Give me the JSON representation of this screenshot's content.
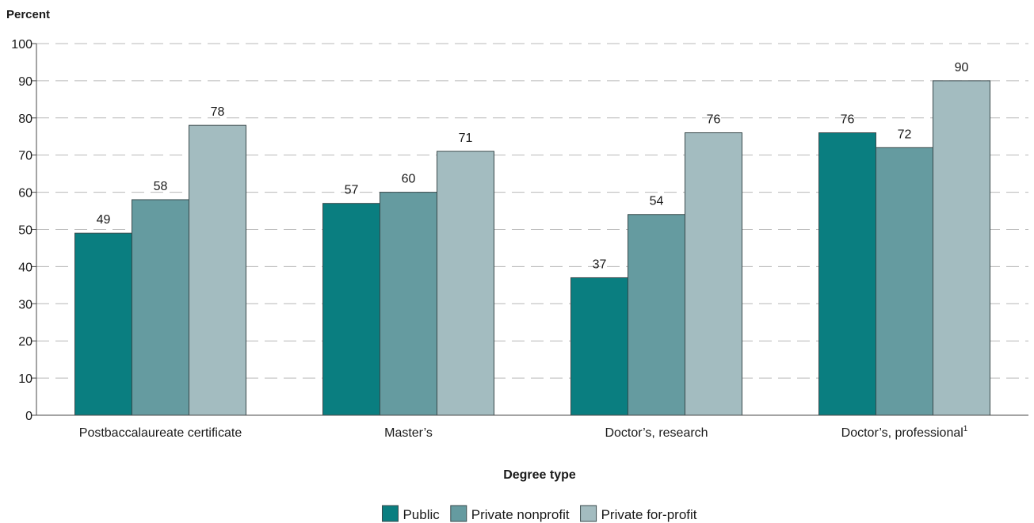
{
  "chart_data": {
    "type": "bar",
    "ylabel": "Percent",
    "xlabel": "Degree type",
    "ylim": [
      0,
      100
    ],
    "yticks": [
      0,
      10,
      20,
      30,
      40,
      50,
      60,
      70,
      80,
      90,
      100
    ],
    "grid": true,
    "legend_position": "bottom-center",
    "categories": [
      {
        "label": "Postbaccalaureate certificate",
        "footnote": ""
      },
      {
        "label": "Master’s",
        "footnote": ""
      },
      {
        "label": "Doctor’s, research",
        "footnote": ""
      },
      {
        "label": "Doctor’s, professional",
        "footnote": "1"
      }
    ],
    "series": [
      {
        "name": "Public",
        "color": "#0a7e80",
        "values": [
          49,
          57,
          37,
          76
        ]
      },
      {
        "name": "Private nonprofit",
        "color": "#659ba0",
        "values": [
          58,
          60,
          54,
          72
        ]
      },
      {
        "name": "Private for-profit",
        "color": "#a3bcc0",
        "values": [
          78,
          71,
          76,
          90
        ]
      }
    ]
  }
}
